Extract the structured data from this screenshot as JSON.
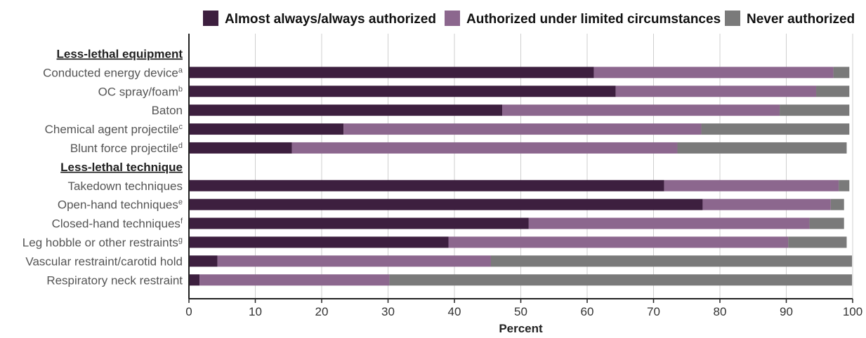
{
  "chart_data": {
    "type": "bar",
    "orientation": "horizontal",
    "stacked": true,
    "xlabel": "Percent",
    "xlim": [
      0,
      100
    ],
    "xticks": [
      "0",
      "10",
      "20",
      "30",
      "40",
      "50",
      "60",
      "70",
      "80",
      "90",
      "100"
    ],
    "grid": true,
    "legend_position": "top",
    "groups": [
      {
        "label": "Less-lethal equipment",
        "categories": [
          0,
          1,
          2,
          3,
          4
        ]
      },
      {
        "label": "Less-lethal technique",
        "categories": [
          5,
          6,
          7,
          8,
          9,
          10
        ]
      }
    ],
    "categories": [
      {
        "label": "Conducted energy device",
        "sup": "a"
      },
      {
        "label": "OC spray/foam",
        "sup": "b"
      },
      {
        "label": "Baton",
        "sup": ""
      },
      {
        "label": "Chemical agent projectile",
        "sup": "c"
      },
      {
        "label": "Blunt force projectile",
        "sup": "d"
      },
      {
        "label": "Takedown techniques",
        "sup": ""
      },
      {
        "label": "Open-hand techniques",
        "sup": "e"
      },
      {
        "label": "Closed-hand techniques",
        "sup": "f"
      },
      {
        "label": "Leg hobble or other restraints",
        "sup": "g"
      },
      {
        "label": "Vascular restraint/carotid hold",
        "sup": ""
      },
      {
        "label": "Respiratory neck restraint",
        "sup": ""
      }
    ],
    "series": [
      {
        "name": "Almost always/always authorized",
        "color": "#3d1f3f",
        "values": [
          61,
          64.3,
          47.2,
          23.3,
          15.5,
          71.6,
          77.4,
          51.2,
          39.1,
          4.3,
          1.6
        ]
      },
      {
        "name": "Authorized under limited circumstances",
        "color": "#8c678e",
        "values": [
          36.1,
          30.2,
          41.8,
          53.9,
          58.1,
          26.3,
          19.3,
          42.3,
          51.2,
          41.2,
          28.6
        ]
      },
      {
        "name": "Never authorized",
        "color": "#7a7a7a",
        "values": [
          2.4,
          5,
          10.5,
          22.3,
          25.5,
          1.6,
          2,
          5.2,
          8.8,
          54.4,
          69.7
        ]
      }
    ]
  }
}
